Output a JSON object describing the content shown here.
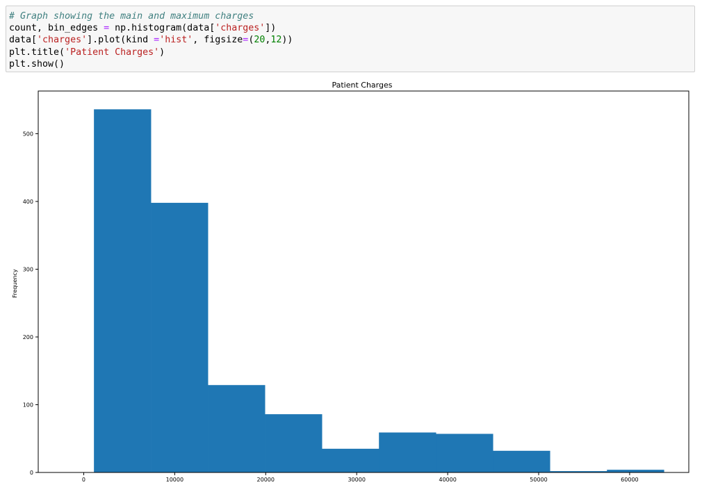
{
  "code_cell": {
    "lines": [
      [
        {
          "t": "# Graph showing the main and maximum charges",
          "c": "cm"
        }
      ],
      [
        {
          "t": "count, bin_edges ",
          "c": ""
        },
        {
          "t": "=",
          "c": "op"
        },
        {
          "t": " np.histogram(data[",
          "c": ""
        },
        {
          "t": "'charges'",
          "c": "st"
        },
        {
          "t": "])",
          "c": ""
        }
      ],
      [
        {
          "t": "data[",
          "c": ""
        },
        {
          "t": "'charges'",
          "c": "st"
        },
        {
          "t": "].plot(kind ",
          "c": ""
        },
        {
          "t": "=",
          "c": "op"
        },
        {
          "t": "'hist'",
          "c": "st"
        },
        {
          "t": ", figsize",
          "c": ""
        },
        {
          "t": "=",
          "c": "op"
        },
        {
          "t": "(",
          "c": ""
        },
        {
          "t": "20",
          "c": "nu"
        },
        {
          "t": ",",
          "c": ""
        },
        {
          "t": "12",
          "c": "nu"
        },
        {
          "t": "))",
          "c": ""
        }
      ],
      [
        {
          "t": "plt.title(",
          "c": ""
        },
        {
          "t": "'Patient Charges'",
          "c": "st"
        },
        {
          "t": ")",
          "c": ""
        }
      ],
      [
        {
          "t": "plt.show()",
          "c": ""
        }
      ]
    ]
  },
  "chart_data": {
    "type": "bar",
    "title": "Patient Charges",
    "xlabel": "",
    "ylabel": "Frequency",
    "bin_edges": [
      1121.87,
      7386.73,
      13651.59,
      19916.44,
      26181.3,
      32446.16,
      38711.01,
      44975.87,
      51240.73,
      57505.59,
      63770.43
    ],
    "values": [
      536,
      398,
      129,
      86,
      35,
      59,
      57,
      32,
      2,
      4
    ],
    "xlim": [
      -5000,
      66500
    ],
    "ylim": [
      0,
      563
    ],
    "xticks": [
      0,
      10000,
      20000,
      30000,
      40000,
      50000,
      60000
    ],
    "yticks": [
      0,
      100,
      200,
      300,
      400,
      500
    ],
    "bar_color": "#1f77b4"
  }
}
